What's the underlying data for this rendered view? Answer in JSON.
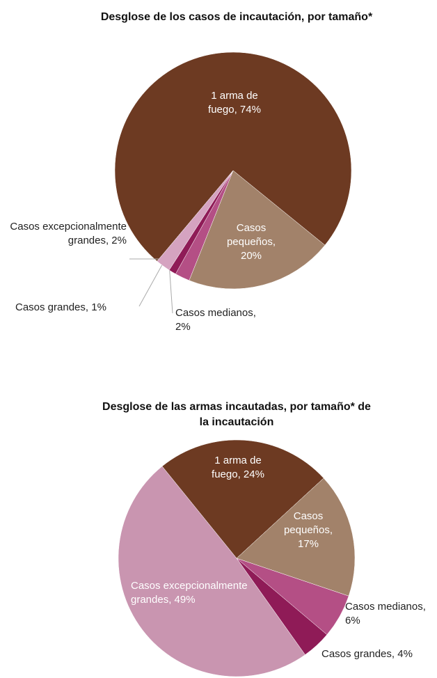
{
  "chart_data": [
    {
      "type": "pie",
      "title": "Desglose de los casos de incautación, por tamaño*",
      "categories": [
        "1 arma de fuego",
        "Casos pequeños",
        "Casos medianos",
        "Casos grandes",
        "Casos excepcionalmente grandes"
      ],
      "values": [
        74,
        20,
        2,
        1,
        2
      ],
      "value_labels": [
        "1 arma de fuego, 74%",
        "Casos pequeños, 20%",
        "Casos medianos, 2%",
        "Casos grandes, 1%",
        "Casos excepcionalmente grandes, 2%"
      ],
      "colors": [
        "#6d3a22",
        "#a2826a",
        "#b44f85",
        "#8f1b57",
        "#d5a3c0"
      ]
    },
    {
      "type": "pie",
      "title": "Desglose de las armas incautadas, por tamaño* de la incautación",
      "categories": [
        "1 arma de fuego",
        "Casos pequeños",
        "Casos medianos",
        "Casos grandes",
        "Casos excepcionalmente grandes"
      ],
      "values": [
        24,
        17,
        6,
        4,
        49
      ],
      "value_labels": [
        "1 arma de fuego, 24%",
        "Casos pequeños, 17%",
        "Casos medianos, 6%",
        "Casos grandes, 4%",
        "Casos excepcionalmente grandes, 49%"
      ],
      "colors": [
        "#6d3a22",
        "#a2826a",
        "#b44f85",
        "#8f1b57",
        "#c995b0"
      ]
    }
  ]
}
